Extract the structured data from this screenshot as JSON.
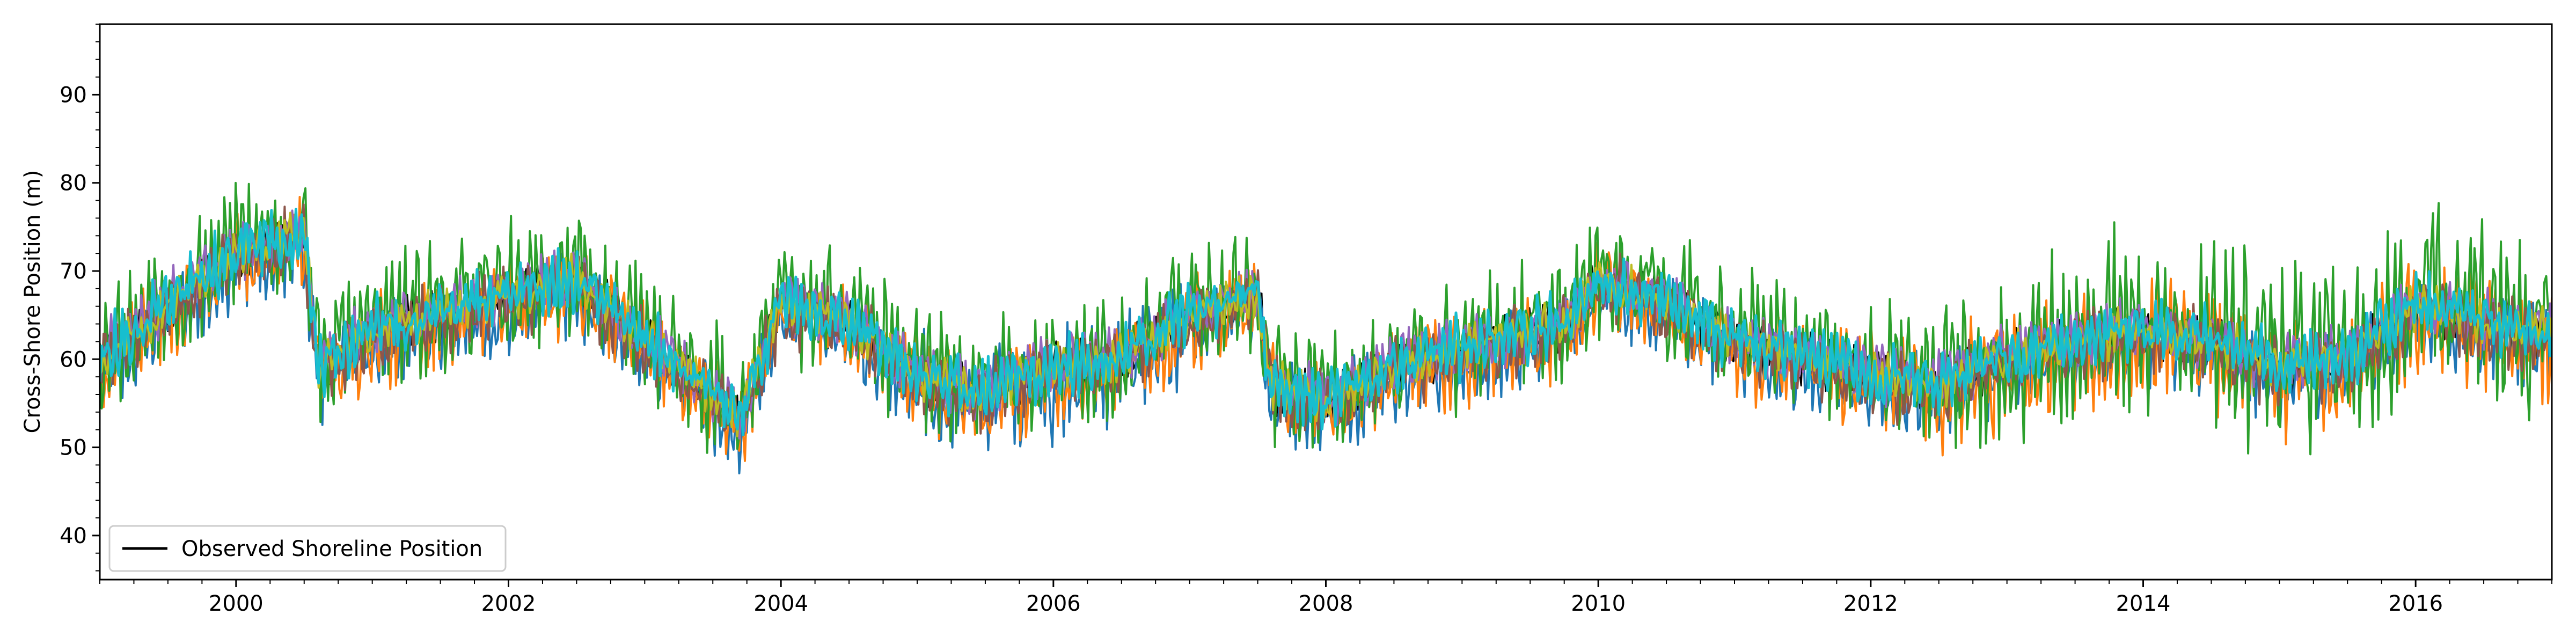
{
  "chart_data": {
    "type": "line",
    "title": "",
    "xlabel": "",
    "ylabel": "Cross-Shore Position (m)",
    "xlim": [
      1999.0,
      2017.0
    ],
    "ylim": [
      35,
      98
    ],
    "x_ticks": [
      2000,
      2002,
      2004,
      2006,
      2008,
      2010,
      2012,
      2014,
      2016
    ],
    "y_ticks": [
      40,
      50,
      60,
      70,
      80,
      90
    ],
    "grid": false,
    "legend": {
      "placement": "lower-left",
      "entries": [
        "Observed Shoreline Position"
      ]
    },
    "series_colors": [
      "#000000",
      "#1f77b4",
      "#ff7f0e",
      "#2ca02c",
      "#9467bd",
      "#8c564b",
      "#bcbd22",
      "#17becf"
    ],
    "trend_x": [
      1999.0,
      1999.5,
      2000.0,
      2000.5,
      2000.6,
      2001.0,
      2001.5,
      2002.0,
      2002.5,
      2003.0,
      2003.5,
      2003.7,
      2004.0,
      2004.5,
      2005.0,
      2005.5,
      2006.0,
      2006.5,
      2007.0,
      2007.5,
      2007.6,
      2008.0,
      2008.5,
      2009.0,
      2009.5,
      2009.8,
      2010.0,
      2010.5,
      2011.0,
      2011.5,
      2012.0,
      2012.5,
      2013.0,
      2013.5,
      2014.0,
      2014.5,
      2015.0,
      2015.5,
      2016.0,
      2016.5,
      2017.0
    ],
    "trend_y": [
      60,
      66,
      72,
      74,
      59,
      63,
      65,
      67,
      69,
      62,
      56,
      53,
      66,
      64,
      58,
      56,
      59,
      60,
      65,
      67,
      57,
      55,
      59,
      61,
      63,
      64,
      69,
      66,
      62,
      60,
      58,
      57,
      60,
      62,
      63,
      62,
      59,
      60,
      66,
      64,
      63
    ]
  }
}
